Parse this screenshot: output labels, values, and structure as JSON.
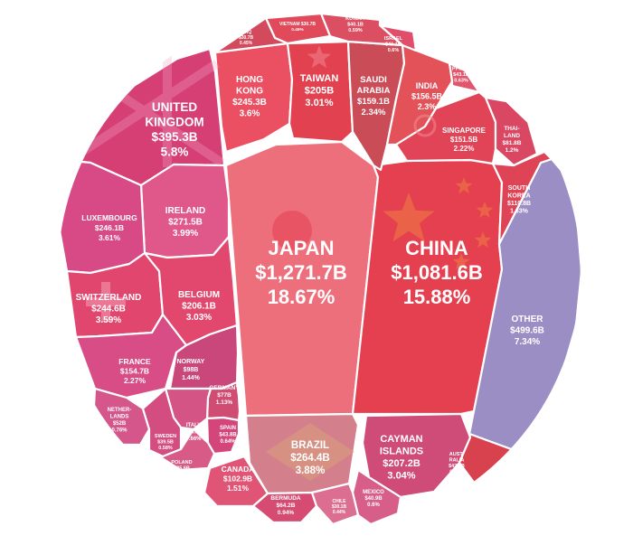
{
  "chart_data": {
    "type": "voronoi-treemap",
    "unit": "USD billions",
    "cells": [
      {
        "name": "JAPAN",
        "value_label": "$1,271.7B",
        "share_label": "18.67%",
        "value": 1271.7,
        "share": 18.67,
        "color": "#ee6f7c",
        "accent": "#e23a4c"
      },
      {
        "name": "CHINA",
        "value_label": "$1,081.6B",
        "share_label": "15.88%",
        "value": 1081.6,
        "share": 15.88,
        "color": "#e4404f",
        "accent": "#f08a3f"
      },
      {
        "name": "OTHER",
        "value_label": "$499.6B",
        "share_label": "7.34%",
        "value": 499.6,
        "share": 7.34,
        "color": "#9b8ec4",
        "accent": "#9b8ec4"
      },
      {
        "name": "UNITED KINGDOM",
        "value_label": "$395.3B",
        "share_label": "5.8%",
        "value": 395.3,
        "share": 5.8,
        "color": "#d63f74",
        "accent": "#f3a7c6"
      },
      {
        "name": "IRELAND",
        "value_label": "$271.5B",
        "share_label": "3.99%",
        "value": 271.5,
        "share": 3.99,
        "color": "#e0578a",
        "accent": "#f39dbd"
      },
      {
        "name": "BRAZIL",
        "value_label": "$264.4B",
        "share_label": "3.88%",
        "value": 264.4,
        "share": 3.88,
        "color": "#d47f8c",
        "accent": "#d8a07c"
      },
      {
        "name": "LUXEMBOURG",
        "value_label": "$246.1B",
        "share_label": "3.61%",
        "value": 246.1,
        "share": 3.61,
        "color": "#d84a86",
        "accent": "#ef8ab5"
      },
      {
        "name": "HONG KONG",
        "value_label": "$245.3B",
        "share_label": "3.6%",
        "value": 245.3,
        "share": 3.6,
        "color": "#ea5062",
        "accent": "#f7a3ad"
      },
      {
        "name": "SWITZERLAND",
        "value_label": "$244.6B",
        "share_label": "3.59%",
        "value": 244.6,
        "share": 3.59,
        "color": "#e0466e",
        "accent": "#f5a0b7"
      },
      {
        "name": "CAYMAN ISLANDS",
        "value_label": "$207.2B",
        "share_label": "3.04%",
        "value": 207.2,
        "share": 3.04,
        "color": "#cf4c79",
        "accent": "#e98bb0"
      },
      {
        "name": "BELGIUM",
        "value_label": "$206.1B",
        "share_label": "3.03%",
        "value": 206.1,
        "share": 3.03,
        "color": "#e2486d",
        "accent": "#f28ca4"
      },
      {
        "name": "TAIWAN",
        "value_label": "$205B",
        "share_label": "3.01%",
        "value": 205.0,
        "share": 3.01,
        "color": "#e2424f",
        "accent": "#f3909a"
      },
      {
        "name": "SAUDI ARABIA",
        "value_label": "$159.1B",
        "share_label": "2.34%",
        "value": 159.1,
        "share": 2.34,
        "color": "#c94c57",
        "accent": "#de7a83"
      },
      {
        "name": "INDIA",
        "value_label": "$156.5B",
        "share_label": "2.3%",
        "value": 156.5,
        "share": 2.3,
        "color": "#e35259",
        "accent": "#f08c8f"
      },
      {
        "name": "FRANCE",
        "value_label": "$154.7B",
        "share_label": "2.27%",
        "value": 154.7,
        "share": 2.27,
        "color": "#d84d85",
        "accent": "#f29bbf"
      },
      {
        "name": "SINGAPORE",
        "value_label": "$151.5B",
        "share_label": "2.22%",
        "value": 151.5,
        "share": 2.22,
        "color": "#e24457",
        "accent": "#f59aa6"
      },
      {
        "name": "SOUTH KOREA",
        "value_label": "$110.8B",
        "share_label": "1.63%",
        "value": 110.8,
        "share": 1.63,
        "color": "#df4356",
        "accent": "#f08e9b"
      },
      {
        "name": "CANADA",
        "value_label": "$102.9B",
        "share_label": "1.51%",
        "value": 102.9,
        "share": 1.51,
        "color": "#e05576",
        "accent": "#f29fb4"
      },
      {
        "name": "NORWAY",
        "value_label": "$98B",
        "share_label": "1.44%",
        "value": 98.0,
        "share": 1.44,
        "color": "#c9477a",
        "accent": "#e78db3"
      },
      {
        "name": "THAILAND",
        "value_label": "$81.8B",
        "share_label": "1.2%",
        "value": 81.8,
        "share": 1.2,
        "color": "#d94762",
        "accent": "#ef97a9"
      },
      {
        "name": "GERMANY",
        "value_label": "$77B",
        "share_label": "1.13%",
        "value": 77.0,
        "share": 1.13,
        "color": "#d04c72",
        "accent": "#e88aa4"
      },
      {
        "name": "BERMUDA",
        "value_label": "$64.2B",
        "share_label": "0.94%",
        "value": 64.2,
        "share": 0.94,
        "color": "#d64b72",
        "accent": "#ed97b0"
      },
      {
        "name": "NETHERLANDS",
        "value_label": "$52B",
        "share_label": "0.76%",
        "value": 52.0,
        "share": 0.76,
        "color": "#d4568a",
        "accent": "#efa1c0"
      },
      {
        "name": "ITALY",
        "value_label": "$44.8B",
        "share_label": "0.66%",
        "value": 44.8,
        "share": 0.66,
        "color": "#d55486",
        "accent": "#ee9dbd"
      },
      {
        "name": "SPAIN",
        "value_label": "$43.8B",
        "share_label": "0.64%",
        "value": 43.8,
        "share": 0.64,
        "color": "#d4467a",
        "accent": "#eb8fb3"
      },
      {
        "name": "PHILIPPINES",
        "value_label": "$43.1B",
        "share_label": "0.63%",
        "value": 43.1,
        "share": 0.63,
        "color": "#e2566d",
        "accent": "#f2a2b2"
      },
      {
        "name": "AUSTRALIA",
        "value_label": "$42.9B",
        "share_label": "0.63%",
        "value": 42.9,
        "share": 0.63,
        "color": "#d8424f",
        "accent": "#ea8a93"
      },
      {
        "name": "ISRAEL",
        "value_label": "$41.1B",
        "share_label": "0.6%",
        "value": 41.1,
        "share": 0.6,
        "color": "#e04e6a",
        "accent": "#f2a0b0"
      },
      {
        "name": "KUWAIT",
        "value_label": "$40.1B",
        "share_label": "0.59%",
        "value": 40.1,
        "share": 0.59,
        "color": "#dc4e62",
        "accent": "#f09aa5"
      },
      {
        "name": "MEXICO",
        "value_label": "$40.9B",
        "share_label": "0.6%",
        "value": 40.9,
        "share": 0.6,
        "color": "#d65e88",
        "accent": "#eea6c0"
      },
      {
        "name": "SWEDEN",
        "value_label": "$39.5B",
        "share_label": "0.58%",
        "value": 39.5,
        "share": 0.58,
        "color": "#d44d80",
        "accent": "#ec98b9"
      },
      {
        "name": "POLAND",
        "value_label": "$35.6B",
        "share_label": "0.52%",
        "value": 35.6,
        "share": 0.52,
        "color": "#d85a86",
        "accent": "#efa3bf"
      },
      {
        "name": "VIETNAM",
        "value_label": "$30.7B",
        "share_label": "0.45%",
        "value": 30.7,
        "share": 0.45,
        "color": "#e04a5b",
        "accent": "#f29ba6"
      },
      {
        "name": "IRAQ",
        "value_label": "$30.7B",
        "share_label": "0.45%",
        "value": 30.7,
        "share": 0.45,
        "color": "#d24a5c",
        "accent": "#ea94a0"
      },
      {
        "name": "CHILE",
        "value_label": "$30.1B",
        "share_label": "0.44%",
        "value": 30.1,
        "share": 0.44,
        "color": "#dc6e92",
        "accent": "#f0b2c6"
      }
    ]
  }
}
